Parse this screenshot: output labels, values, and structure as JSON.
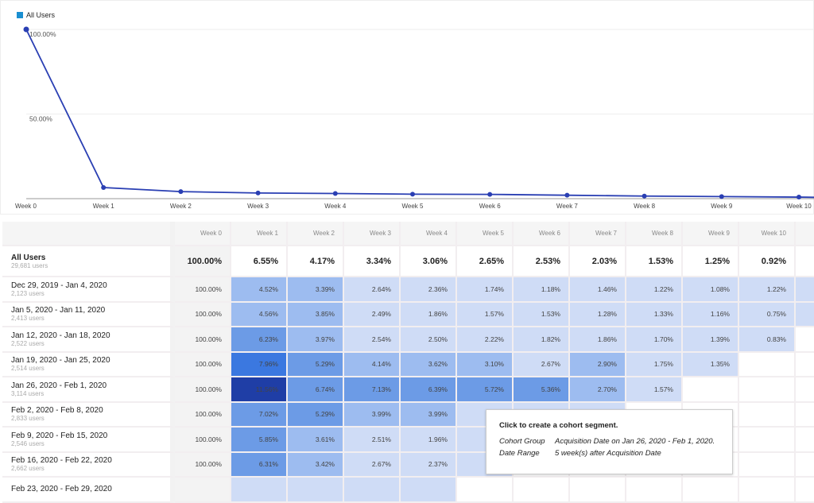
{
  "chart_data": {
    "type": "line",
    "legend": [
      "All Users"
    ],
    "series": [
      {
        "name": "All Users",
        "values": [
          100,
          6.55,
          4.17,
          3.34,
          3.06,
          2.65,
          2.53,
          2.03,
          1.53,
          1.25,
          0.92
        ]
      }
    ],
    "categories": [
      "Week 0",
      "Week 1",
      "Week 2",
      "Week 3",
      "Week 4",
      "Week 5",
      "Week 6",
      "Week 7",
      "Week 8",
      "Week 9",
      "Week 10"
    ],
    "yticks": [
      "100.00%",
      "50.00%"
    ],
    "ylim": [
      0,
      100
    ],
    "color": "#2a3fb3",
    "legend_color": "#1a8fd1"
  },
  "table": {
    "headers": [
      "Week 0",
      "Week 1",
      "Week 2",
      "Week 3",
      "Week 4",
      "Week 5",
      "Week 6",
      "Week 7",
      "Week 8",
      "Week 9",
      "Week 10"
    ],
    "total": {
      "label": "All Users",
      "users": "29,681 users",
      "values": [
        "100.00%",
        "6.55%",
        "4.17%",
        "3.34%",
        "3.06%",
        "2.65%",
        "2.53%",
        "2.03%",
        "1.53%",
        "1.25%",
        "0.92%"
      ]
    },
    "rows": [
      {
        "label": "Dec 29, 2019 - Jan 4, 2020",
        "users": "2,123 users",
        "values": [
          "100.00%",
          "4.52%",
          "3.39%",
          "2.64%",
          "2.36%",
          "1.74%",
          "1.18%",
          "1.46%",
          "1.22%",
          "1.08%",
          "1.22%"
        ],
        "extra": true
      },
      {
        "label": "Jan 5, 2020 - Jan 11, 2020",
        "users": "2,413 users",
        "values": [
          "100.00%",
          "4.56%",
          "3.85%",
          "2.49%",
          "1.86%",
          "1.57%",
          "1.53%",
          "1.28%",
          "1.33%",
          "1.16%",
          "0.75%"
        ],
        "extra": true
      },
      {
        "label": "Jan 12, 2020 - Jan 18, 2020",
        "users": "2,522 users",
        "values": [
          "100.00%",
          "6.23%",
          "3.97%",
          "2.54%",
          "2.50%",
          "2.22%",
          "1.82%",
          "1.86%",
          "1.70%",
          "1.39%",
          "0.83%"
        ]
      },
      {
        "label": "Jan 19, 2020 - Jan 25, 2020",
        "users": "2,514 users",
        "values": [
          "100.00%",
          "7.96%",
          "5.29%",
          "4.14%",
          "3.62%",
          "3.10%",
          "2.67%",
          "2.90%",
          "1.75%",
          "1.35%"
        ]
      },
      {
        "label": "Jan 26, 2020 - Feb 1, 2020",
        "users": "3,114 users",
        "values": [
          "100.00%",
          "11.56%",
          "6.74%",
          "7.13%",
          "6.39%",
          "5.72%",
          "5.36%",
          "2.70%",
          "1.57%"
        ]
      },
      {
        "label": "Feb 2, 2020 - Feb 8, 2020",
        "users": "2,833 users",
        "values": [
          "100.00%",
          "7.02%",
          "5.29%",
          "3.99%",
          "3.99%",
          "",
          "",
          ""
        ]
      },
      {
        "label": "Feb 9, 2020 - Feb 15, 2020",
        "users": "2,546 users",
        "values": [
          "100.00%",
          "5.85%",
          "3.61%",
          "2.51%",
          "1.96%",
          "",
          ""
        ]
      },
      {
        "label": "Feb 16, 2020 - Feb 22, 2020",
        "users": "2,662 users",
        "values": [
          "100.00%",
          "6.31%",
          "3.42%",
          "2.67%",
          "2.37%",
          ""
        ]
      },
      {
        "label": "Feb 23, 2020 - Feb 29, 2020",
        "users": "",
        "values": [
          "",
          "",
          "",
          "",
          ""
        ]
      }
    ]
  },
  "tooltip": {
    "title": "Click to create a cohort segment.",
    "group_label": "Cohort Group",
    "group_value": "Acquisition Date on Jan 26, 2020 - Feb 1, 2020.",
    "range_label": "Date Range",
    "range_value": "5 week(s) after Acquisition Date"
  }
}
